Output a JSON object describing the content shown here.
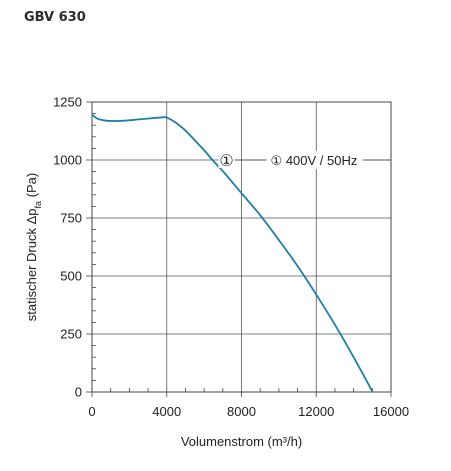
{
  "chart_data": {
    "type": "line",
    "title": "GBV 630",
    "xlabel": "Volumenstrom (m³/h)",
    "ylabel_main": "statischer Druck Δp",
    "ylabel_sub": "fa",
    "ylabel_unit": "(Pa)",
    "xlim": [
      0,
      16000
    ],
    "ylim": [
      0,
      1250
    ],
    "xticks": [
      0,
      4000,
      8000,
      12000,
      16000
    ],
    "yticks": [
      0,
      250,
      500,
      750,
      1000,
      1250
    ],
    "xtick_labels": [
      "0",
      "4000",
      "8000",
      "12000",
      "16000"
    ],
    "ytick_labels": [
      "0",
      "250",
      "500",
      "750",
      "1000",
      "1250"
    ],
    "grid": true,
    "line_color": "#1f7ea8",
    "series": [
      {
        "name": "400V / 50Hz",
        "marker": "①",
        "x": [
          0,
          300,
          700,
          1200,
          1800,
          2500,
          3200,
          3800,
          4000,
          4500,
          5000,
          5500,
          6000,
          6500,
          7000,
          7500,
          8000,
          9000,
          10000,
          11000,
          12000,
          13000,
          14000,
          15000
        ],
        "y": [
          1195,
          1178,
          1170,
          1168,
          1170,
          1175,
          1180,
          1184,
          1183,
          1160,
          1127,
          1085,
          1042,
          995,
          952,
          905,
          857,
          762,
          655,
          543,
          420,
          290,
          150,
          3
        ]
      }
    ],
    "annotation": {
      "marker_label": "①",
      "legend_label": "① 400V / 50Hz",
      "marker_x": 7200,
      "marker_y": 1000
    }
  }
}
